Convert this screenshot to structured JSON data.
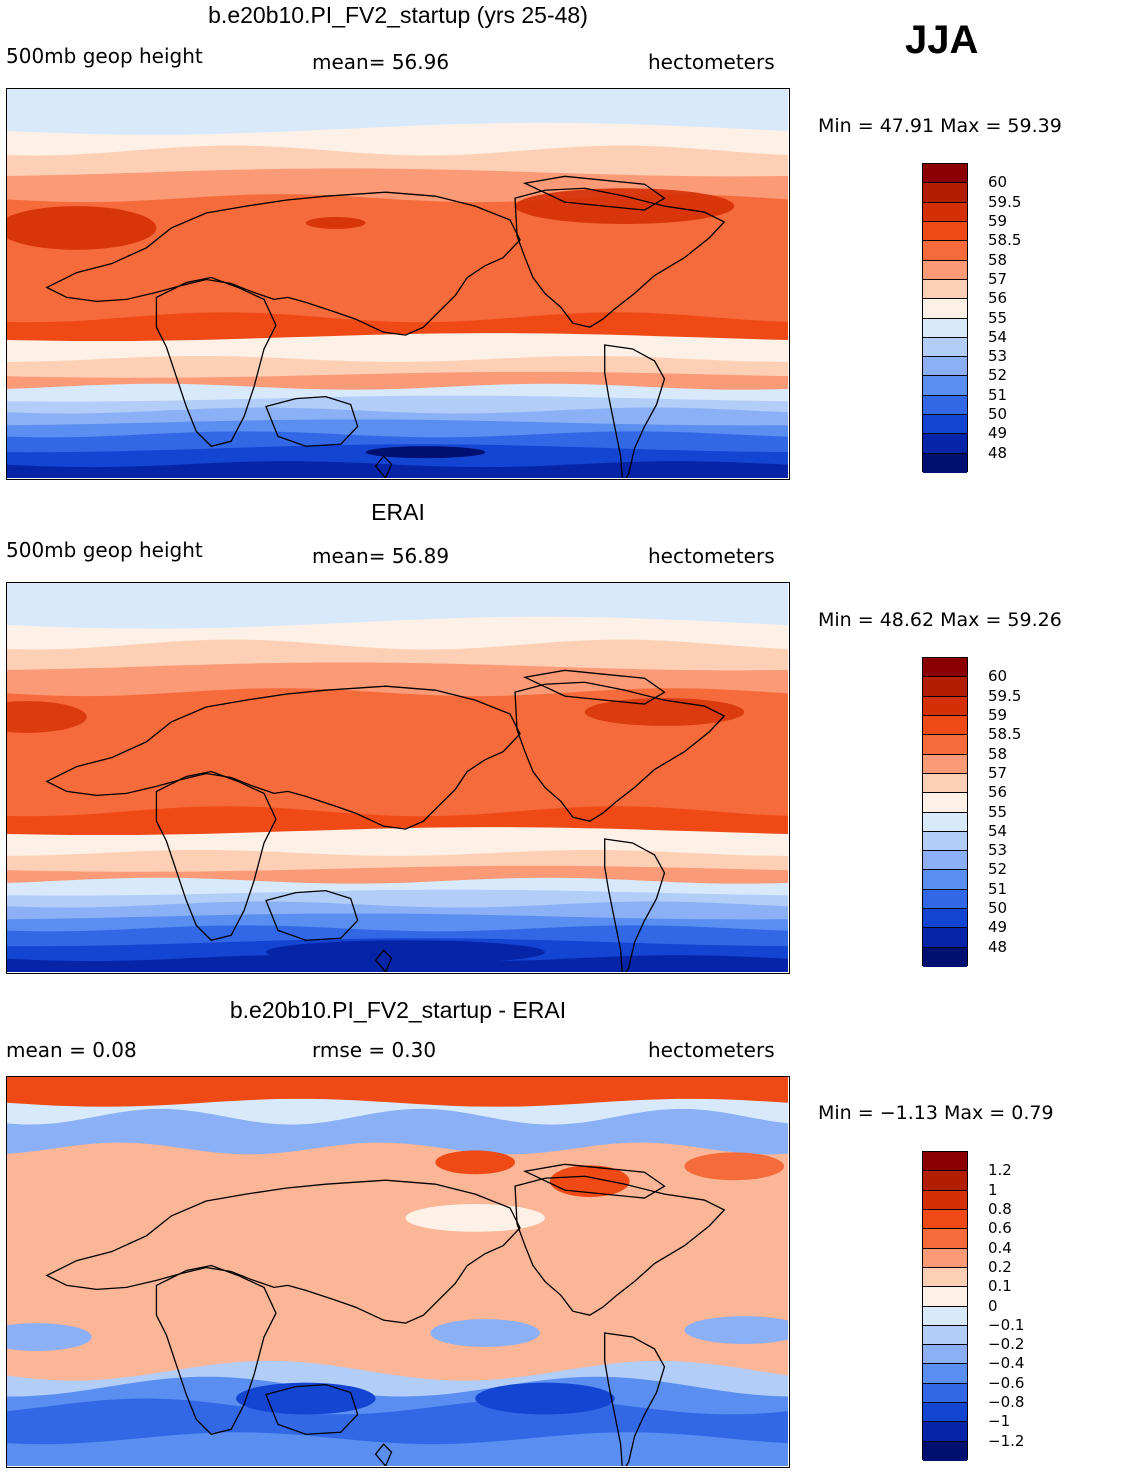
{
  "season": "JJA",
  "panels": [
    {
      "title": "b.e20b10.PI_FV2_startup (yrs 25-48)",
      "left_label": "500mb geop height",
      "mid_label": "mean=   56.96",
      "right_label": "hectometers",
      "minmax": "Min =   47.91  Max =   59.39",
      "colorbar": {
        "labels": [
          "60",
          "59.5",
          "59",
          "58.5",
          "58",
          "57",
          "56",
          "55",
          "54",
          "53",
          "52",
          "51",
          "50",
          "49",
          "48"
        ],
        "colors": [
          "#8b0000",
          "#b41e00",
          "#d53005",
          "#ef4a16",
          "#f66b3b",
          "#fb9a77",
          "#fdd0b5",
          "#fdf0e6",
          "#d8e9fb",
          "#b1cdf8",
          "#8bb0f5",
          "#5a8ef0",
          "#3268e6",
          "#1444d2",
          "#0624a8",
          "#001070"
        ]
      },
      "field": "model"
    },
    {
      "title": "ERAI",
      "left_label": "500mb geop height",
      "mid_label": "mean=   56.89",
      "right_label": "hectometers",
      "minmax": "Min =   48.62  Max =   59.26",
      "colorbar": {
        "labels": [
          "60",
          "59.5",
          "59",
          "58.5",
          "58",
          "57",
          "56",
          "55",
          "54",
          "53",
          "52",
          "51",
          "50",
          "49",
          "48"
        ],
        "colors": [
          "#8b0000",
          "#b41e00",
          "#d53005",
          "#ef4a16",
          "#f66b3b",
          "#fb9a77",
          "#fdd0b5",
          "#fdf0e6",
          "#d8e9fb",
          "#b1cdf8",
          "#8bb0f5",
          "#5a8ef0",
          "#3268e6",
          "#1444d2",
          "#0624a8",
          "#001070"
        ]
      },
      "field": "obs"
    },
    {
      "title": "b.e20b10.PI_FV2_startup - ERAI",
      "left_label": "mean =     0.08",
      "mid_label": "rmse =     0.30",
      "right_label": "hectometers",
      "minmax": "Min =   −1.13  Max =      0.79",
      "colorbar": {
        "labels": [
          "1.2",
          "1",
          "0.8",
          "0.6",
          "0.4",
          "0.2",
          "0.1",
          "0",
          "−0.1",
          "−0.2",
          "−0.4",
          "−0.6",
          "−0.8",
          "−1",
          "−1.2"
        ],
        "colors": [
          "#8b0000",
          "#b41e00",
          "#d53005",
          "#ef4a16",
          "#f66b3b",
          "#fb9a77",
          "#fdd0b5",
          "#fdf0e6",
          "#d8e9fb",
          "#b1cdf8",
          "#8bb0f5",
          "#5a8ef0",
          "#3268e6",
          "#1444d2",
          "#0624a8",
          "#001070"
        ]
      },
      "field": "diff"
    }
  ]
}
